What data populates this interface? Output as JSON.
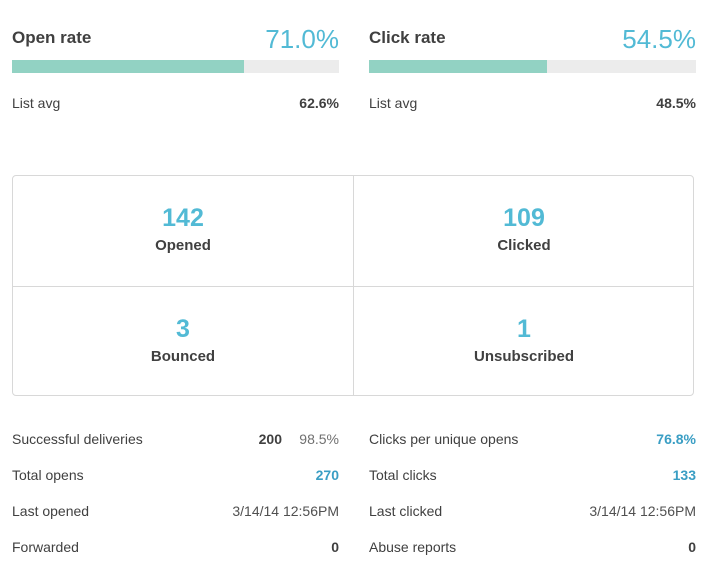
{
  "open_rate": {
    "title": "Open rate",
    "value": "71.0%",
    "fill": 0.71,
    "avg_label": "List avg",
    "avg_value": "62.6%"
  },
  "click_rate": {
    "title": "Click rate",
    "value": "54.5%",
    "fill": 0.545,
    "avg_label": "List avg",
    "avg_value": "48.5%"
  },
  "metrics": {
    "opened": {
      "number": "142",
      "label": "Opened"
    },
    "clicked": {
      "number": "109",
      "label": "Clicked"
    },
    "bounced": {
      "number": "3",
      "label": "Bounced"
    },
    "unsubscribed": {
      "number": "1",
      "label": "Unsubscribed"
    }
  },
  "left_stats": {
    "successful_deliveries": {
      "label": "Successful deliveries",
      "count": "200",
      "percent": "98.5%"
    },
    "total_opens": {
      "label": "Total opens",
      "value": "270"
    },
    "last_opened": {
      "label": "Last opened",
      "value": "3/14/14 12:56PM"
    },
    "forwarded": {
      "label": "Forwarded",
      "value": "0"
    }
  },
  "right_stats": {
    "clicks_per_unique_opens": {
      "label": "Clicks per unique opens",
      "value": "76.8%"
    },
    "total_clicks": {
      "label": "Total clicks",
      "value": "133"
    },
    "last_clicked": {
      "label": "Last clicked",
      "value": "3/14/14 12:56PM"
    },
    "abuse_reports": {
      "label": "Abuse reports",
      "value": "0"
    }
  },
  "colors": {
    "accent": "#52bad5",
    "bar_fill": "#92d2c3",
    "bar_track": "#ececec",
    "link_value": "#3a9ec4"
  }
}
